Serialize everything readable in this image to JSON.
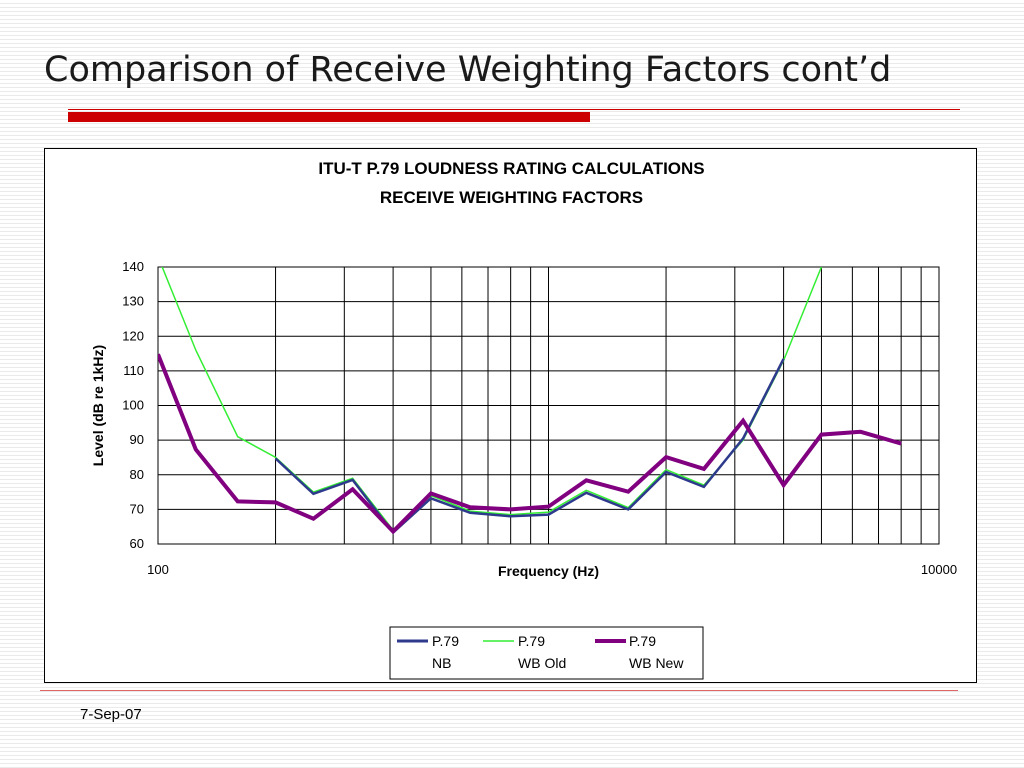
{
  "slide": {
    "title": "Comparison of Receive Weighting Factors cont’d",
    "date": "7-Sep-07"
  },
  "colors": {
    "title_rule": "#cc0000",
    "nb": "#2e3a8c",
    "wb_old": "#33ee33",
    "wb_new": "#800080"
  },
  "chart_data": {
    "type": "line",
    "title": "ITU-T P.79 LOUDNESS RATING CALCULATIONS",
    "subtitle": "RECEIVE WEIGHTING FACTORS",
    "xlabel": "Frequency (Hz)",
    "ylabel": "Level (dB re 1kHz)",
    "x_scale": "log",
    "xlim": [
      100,
      10000
    ],
    "ylim": [
      60,
      140
    ],
    "x_tick_labels": [
      "100",
      "10000"
    ],
    "y_ticks": [
      60,
      70,
      80,
      90,
      100,
      110,
      120,
      130,
      140
    ],
    "grid": true,
    "legend_position": "bottom-center",
    "x": [
      100,
      125,
      160,
      200,
      250,
      315,
      400,
      500,
      630,
      800,
      1000,
      1250,
      1600,
      2000,
      2500,
      3150,
      4000,
      5000,
      6300,
      8000
    ],
    "series": [
      {
        "name": "P.79 NB",
        "values": [
          null,
          null,
          null,
          84.7,
          74.5,
          78.5,
          63.3,
          73.2,
          69.0,
          68.0,
          68.5,
          74.8,
          70.0,
          80.8,
          76.5,
          90.5,
          113.5,
          null,
          null,
          null
        ]
      },
      {
        "name": "P.79 WB Old",
        "values": [
          143.0,
          116.0,
          91.0,
          85.0,
          75.0,
          79.0,
          64.0,
          74.0,
          69.5,
          68.5,
          69.2,
          75.5,
          70.5,
          81.5,
          77.0,
          90.0,
          113.0,
          140.0,
          null,
          null
        ]
      },
      {
        "name": "P.79 WB New",
        "values": [
          114.8,
          87.3,
          72.3,
          72.0,
          67.3,
          75.8,
          63.6,
          74.6,
          70.6,
          70.0,
          70.8,
          78.4,
          75.1,
          85.1,
          81.7,
          95.6,
          77.0,
          91.6,
          92.4,
          89.0
        ]
      }
    ],
    "legend": [
      {
        "line1": "P.79",
        "line2": "NB"
      },
      {
        "line1": "P.79",
        "line2": "WB Old"
      },
      {
        "line1": "P.79",
        "line2": "WB New"
      }
    ]
  }
}
